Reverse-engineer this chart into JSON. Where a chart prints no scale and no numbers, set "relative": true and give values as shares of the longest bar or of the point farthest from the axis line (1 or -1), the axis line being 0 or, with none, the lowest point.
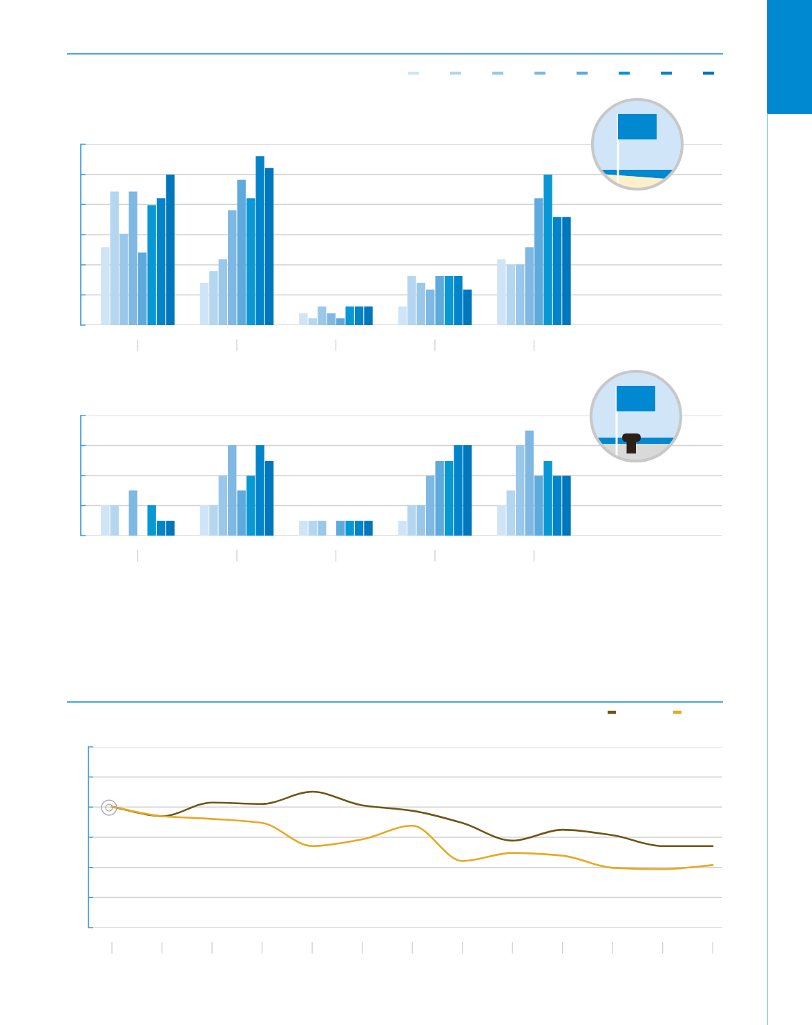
{
  "chart_data": [
    {
      "type": "bar",
      "relative": true,
      "categories": [
        null,
        null,
        null,
        null,
        null
      ],
      "series": [
        {
          "color": "#cfe4f6",
          "values": [
            0.46,
            0.25,
            0.07,
            0.11,
            0.39
          ]
        },
        {
          "color": "#b4d6f1",
          "values": [
            0.79,
            0.32,
            0.04,
            0.29,
            0.36
          ]
        },
        {
          "color": "#9ac8ea",
          "values": [
            0.54,
            0.39,
            0.11,
            0.25,
            0.36
          ]
        },
        {
          "color": "#7eb8e3",
          "values": [
            0.79,
            0.68,
            0.07,
            0.21,
            0.46
          ]
        },
        {
          "color": "#5eaadd",
          "values": [
            0.43,
            0.86,
            0.04,
            0.29,
            0.75
          ]
        },
        {
          "color": "#0898d5",
          "values": [
            0.71,
            0.75,
            0.11,
            0.29,
            0.89
          ]
        },
        {
          "color": "#0384ca",
          "values": [
            0.75,
            1.0,
            0.11,
            0.29,
            0.64
          ]
        },
        {
          "color": "#0076bc",
          "values": [
            0.89,
            0.93,
            0.11,
            0.21,
            0.64
          ]
        }
      ],
      "grid": "y"
    },
    {
      "type": "bar",
      "relative": true,
      "categories": [
        null,
        null,
        null,
        null,
        null
      ],
      "series": [
        {
          "color": "#cfe4f6",
          "values": [
            0.29,
            0.29,
            0.14,
            0.14,
            0.29
          ]
        },
        {
          "color": "#b4d6f1",
          "values": [
            0.29,
            0.29,
            0.14,
            0.29,
            0.43
          ]
        },
        {
          "color": "#9ac8ea",
          "values": [
            0,
            0.57,
            0.14,
            0.29,
            0.86
          ]
        },
        {
          "color": "#7eb8e3",
          "values": [
            0.43,
            0.86,
            0,
            0.57,
            1.0
          ]
        },
        {
          "color": "#5eaadd",
          "values": [
            0,
            0.43,
            0.14,
            0.71,
            0.57
          ]
        },
        {
          "color": "#0898d5",
          "values": [
            0.29,
            0.57,
            0.14,
            0.71,
            0.71
          ]
        },
        {
          "color": "#0384ca",
          "values": [
            0.14,
            0.86,
            0.14,
            0.86,
            0.57
          ]
        },
        {
          "color": "#0076bc",
          "values": [
            0.14,
            0.71,
            0.14,
            0.86,
            0.57
          ]
        }
      ],
      "grid": "y"
    },
    {
      "type": "line",
      "relative": true,
      "categories": [
        null,
        null,
        null,
        null,
        null,
        null,
        null,
        null,
        null,
        null,
        null,
        null,
        null
      ],
      "series": [
        {
          "color": "#6e5514",
          "values": [
            0.89,
            0.82,
            0.92,
            0.91,
            1.0,
            0.9,
            0.86,
            0.77,
            0.64,
            0.72,
            0.68,
            0.6,
            0.6
          ]
        },
        {
          "color": "#e8a823",
          "values": [
            0.89,
            0.82,
            0.8,
            0.77,
            0.6,
            0.65,
            0.75,
            0.49,
            0.55,
            0.53,
            0.44,
            0.43,
            0.46
          ]
        }
      ],
      "grid": "y"
    }
  ]
}
